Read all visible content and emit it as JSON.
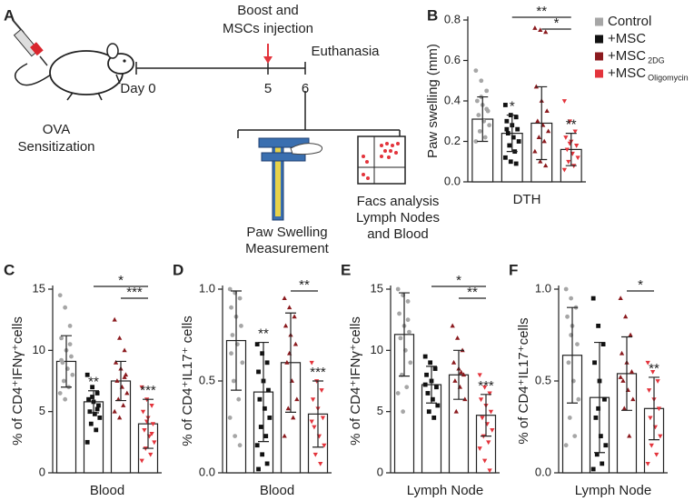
{
  "diagram": {
    "panel": "A",
    "boost_line1": "Boost and",
    "boost_line2": "MSCs injection",
    "euthanasia": "Euthanasia",
    "day0": "Day 0",
    "day5": "5",
    "day6": "6",
    "ova": "OVA",
    "sensitization": "Sensitization",
    "paw1": "Paw Swelling",
    "paw2": "Measurement",
    "facs1": "Facs analysis",
    "facs2": "Lymph Nodes",
    "facs3": "and Blood"
  },
  "chart_data": [
    {
      "type": "bar",
      "panel": "B",
      "ylabel": "Paw swelling (mm)",
      "xlabel": "DTH",
      "ylim": [
        0,
        0.8
      ],
      "yticks": [
        {
          "value": 0,
          "label": "0.0"
        },
        0.2,
        0.4,
        0.6,
        0.8
      ],
      "legend": "right",
      "series": [
        {
          "name": "Control",
          "color": "#a6a6a6",
          "marker": "circle",
          "value": 0.31,
          "error": 0.11,
          "points": [
            0.55,
            0.5,
            0.45,
            0.4,
            0.38,
            0.35,
            0.33,
            0.3,
            0.28,
            0.25,
            0.22,
            0.2,
            0.42,
            0.36
          ]
        },
        {
          "name": "+MSC",
          "color": "#111111",
          "marker": "square",
          "value": 0.24,
          "error": 0.09,
          "star": "*",
          "points": [
            0.38,
            0.33,
            0.32,
            0.3,
            0.28,
            0.26,
            0.24,
            0.22,
            0.2,
            0.18,
            0.15,
            0.12,
            0.1,
            0.09,
            0.26
          ]
        },
        {
          "name": "+MSC",
          "subscript": "2DG",
          "color": "#8b1a1e",
          "marker": "triangle",
          "value": 0.29,
          "error": 0.18,
          "points": [
            0.76,
            0.75,
            0.74,
            0.47,
            0.4,
            0.35,
            0.3,
            0.28,
            0.25,
            0.22,
            0.2,
            0.15,
            0.1,
            0.08
          ]
        },
        {
          "name": "+MSC",
          "subscript": "Oligomycin",
          "color": "#e3343c",
          "marker": "triangle-down",
          "value": 0.16,
          "error": 0.08,
          "star": "**",
          "points": [
            0.4,
            0.3,
            0.25,
            0.22,
            0.2,
            0.18,
            0.16,
            0.14,
            0.12,
            0.1,
            0.08,
            0.06,
            0.19
          ]
        }
      ],
      "brackets": [
        {
          "from": 1,
          "to": 3,
          "label": "**"
        },
        {
          "from": 2,
          "to": 3,
          "label": "*"
        }
      ]
    },
    {
      "type": "bar",
      "panel": "C",
      "ylabel": "% of CD4⁺IFNγ⁺cells",
      "xlabel": "Blood",
      "ylim": [
        0,
        15
      ],
      "yticks": [
        0,
        5,
        10,
        15
      ],
      "series": [
        {
          "color": "#a6a6a6",
          "marker": "circle",
          "value": 9.1,
          "error": 2.1,
          "points": [
            14.5,
            13.5,
            12,
            11,
            10,
            9.5,
            9,
            8.5,
            8,
            7.5,
            7,
            6.5,
            6,
            10.5,
            9.2
          ]
        },
        {
          "color": "#111111",
          "marker": "square",
          "value": 5.8,
          "error": 0.9,
          "star": "**",
          "points": [
            8,
            7,
            6.5,
            6,
            5.8,
            5.5,
            5,
            4.8,
            4.5,
            4,
            3.5,
            2.5,
            6.2,
            5.2
          ]
        },
        {
          "color": "#8b1a1e",
          "marker": "triangle",
          "value": 7.5,
          "error": 1.6,
          "points": [
            12.5,
            11,
            10,
            9,
            8.5,
            8,
            7.5,
            7,
            6.5,
            6,
            5.5,
            5,
            4.5,
            7.8
          ]
        },
        {
          "color": "#e3343c",
          "marker": "triangle-down",
          "value": 4.0,
          "error": 2.0,
          "star": "***",
          "points": [
            7,
            6,
            5.5,
            5,
            4.5,
            4,
            3.5,
            3,
            2.5,
            2,
            1.5,
            1,
            4.2,
            3.2
          ]
        }
      ],
      "brackets": [
        {
          "from": 1,
          "to": 3,
          "label": "*"
        },
        {
          "from": 2,
          "to": 3,
          "label": "***"
        }
      ]
    },
    {
      "type": "bar",
      "panel": "D",
      "ylabel": "% of CD4⁺IL17⁺ cells",
      "xlabel": "Blood",
      "ylim": [
        0,
        1
      ],
      "yticks": [
        {
          "value": 0,
          "label": "0.0"
        },
        0.5,
        {
          "value": 1,
          "label": "1.0"
        }
      ],
      "series": [
        {
          "color": "#a6a6a6",
          "marker": "circle",
          "value": 0.72,
          "error": 0.27,
          "points": [
            1.0,
            0.98,
            0.95,
            0.9,
            0.85,
            0.8,
            0.75,
            0.7,
            0.6,
            0.5,
            0.4,
            0.3,
            0.2,
            0.15,
            0.65
          ]
        },
        {
          "color": "#111111",
          "marker": "square",
          "value": 0.44,
          "error": 0.27,
          "star": "**",
          "points": [
            0.7,
            0.65,
            0.6,
            0.55,
            0.5,
            0.45,
            0.4,
            0.35,
            0.3,
            0.25,
            0.2,
            0.15,
            0.1,
            0.05,
            0.02
          ]
        },
        {
          "color": "#8b1a1e",
          "marker": "triangle",
          "value": 0.6,
          "error": 0.27,
          "points": [
            0.95,
            0.9,
            0.85,
            0.8,
            0.75,
            0.7,
            0.6,
            0.5,
            0.4,
            0.35,
            0.3,
            0.2,
            0.65
          ]
        },
        {
          "color": "#e3343c",
          "marker": "triangle-down",
          "value": 0.32,
          "error": 0.18,
          "star": "***",
          "points": [
            0.6,
            0.5,
            0.45,
            0.4,
            0.35,
            0.3,
            0.25,
            0.2,
            0.15,
            0.1,
            0.05,
            0.28
          ]
        }
      ],
      "brackets": [
        {
          "from": 2,
          "to": 3,
          "label": "**"
        }
      ]
    },
    {
      "type": "bar",
      "panel": "E",
      "ylabel": "% of CD4⁺IFNγ⁺cells",
      "xlabel": "Lymph Node",
      "ylim": [
        0,
        15
      ],
      "yticks": [
        0,
        5,
        10,
        15
      ],
      "series": [
        {
          "color": "#a6a6a6",
          "marker": "circle",
          "value": 11.3,
          "error": 3.4,
          "points": [
            15,
            14.5,
            14,
            13,
            12,
            11.5,
            11,
            10,
            9,
            8,
            7,
            6.5,
            5,
            12.5
          ]
        },
        {
          "color": "#111111",
          "marker": "square",
          "value": 7.2,
          "error": 1.5,
          "points": [
            9.5,
            9,
            8.5,
            8,
            7.5,
            7,
            6.5,
            6,
            5.5,
            5,
            4.5,
            7.2
          ]
        },
        {
          "color": "#8b1a1e",
          "marker": "triangle",
          "value": 8.0,
          "error": 2.0,
          "points": [
            12,
            11,
            10,
            9,
            8.5,
            8,
            7.5,
            7,
            6,
            5,
            8.2
          ]
        },
        {
          "color": "#e3343c",
          "marker": "triangle-down",
          "value": 4.7,
          "error": 1.7,
          "star": "***",
          "points": [
            8,
            7,
            6.5,
            6,
            5.5,
            5,
            4.5,
            4,
            3.5,
            3,
            2.5,
            2,
            1,
            0.2
          ]
        }
      ],
      "brackets": [
        {
          "from": 1,
          "to": 3,
          "label": "*"
        },
        {
          "from": 2,
          "to": 3,
          "label": "**"
        }
      ]
    },
    {
      "type": "bar",
      "panel": "F",
      "ylabel": "% of CD4⁺IL17⁺cells",
      "xlabel": "Lymph Node",
      "ylim": [
        0,
        1
      ],
      "yticks": [
        {
          "value": 0,
          "label": "0.0"
        },
        0.5,
        {
          "value": 1,
          "label": "1.0"
        }
      ],
      "series": [
        {
          "color": "#a6a6a6",
          "marker": "circle",
          "value": 0.64,
          "error": 0.26,
          "points": [
            1.0,
            0.95,
            0.9,
            0.85,
            0.8,
            0.7,
            0.6,
            0.5,
            0.4,
            0.3,
            0.2,
            0.15,
            0.75
          ]
        },
        {
          "color": "#111111",
          "marker": "square",
          "value": 0.41,
          "error": 0.3,
          "points": [
            0.95,
            0.8,
            0.7,
            0.6,
            0.5,
            0.4,
            0.3,
            0.2,
            0.15,
            0.1,
            0.05,
            0.02,
            0.35
          ]
        },
        {
          "color": "#8b1a1e",
          "marker": "triangle",
          "value": 0.54,
          "error": 0.2,
          "points": [
            0.95,
            0.85,
            0.75,
            0.65,
            0.6,
            0.55,
            0.5,
            0.45,
            0.4,
            0.35,
            0.2,
            0.52
          ]
        },
        {
          "color": "#e3343c",
          "marker": "triangle-down",
          "value": 0.35,
          "error": 0.17,
          "star": "**",
          "points": [
            0.6,
            0.55,
            0.5,
            0.45,
            0.4,
            0.35,
            0.3,
            0.25,
            0.2,
            0.15,
            0.1,
            0.05
          ]
        }
      ],
      "brackets": [
        {
          "from": 2,
          "to": 3,
          "label": "*"
        }
      ]
    }
  ]
}
